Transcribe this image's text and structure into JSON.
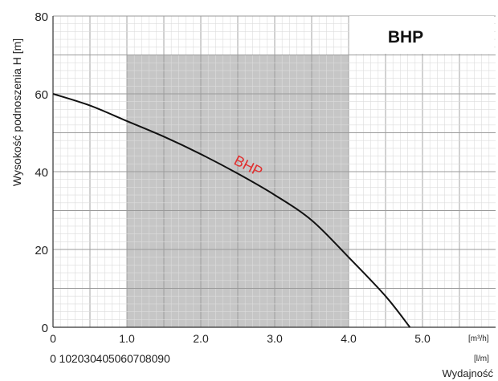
{
  "chart_data": {
    "type": "line",
    "title": "BHP",
    "ylabel": "Wysokość podnoszenia H [m]",
    "xlabel": "Wydajność",
    "ylim": [
      0,
      80
    ],
    "xlim": [
      0,
      6
    ],
    "y_ticks": [
      "0",
      "20",
      "40",
      "60",
      "80"
    ],
    "x_ticks_m3h": [
      "0",
      "1.0",
      "2.0",
      "3.0",
      "4.0",
      "5.0"
    ],
    "x_unit_m3h": "[m³/h]",
    "x_ticks_lmin": [
      "0",
      "10",
      "20",
      "30",
      "40",
      "50",
      "60",
      "70",
      "80",
      "90"
    ],
    "x_unit_lmin": "[l/m]",
    "shaded_region": {
      "x_start": 1.0,
      "x_end": 4.0,
      "y_top": 70
    },
    "grid": true,
    "series": [
      {
        "name": "BHP",
        "color": "#111111",
        "x": [
          0,
          0.5,
          1.0,
          1.5,
          2.0,
          2.5,
          3.0,
          3.5,
          4.0,
          4.5,
          4.83
        ],
        "y": [
          60,
          57,
          53,
          49,
          44.5,
          39.5,
          34,
          27.5,
          18,
          8,
          0
        ]
      }
    ],
    "annotation": {
      "text": "BHP",
      "color": "#e03030"
    }
  }
}
